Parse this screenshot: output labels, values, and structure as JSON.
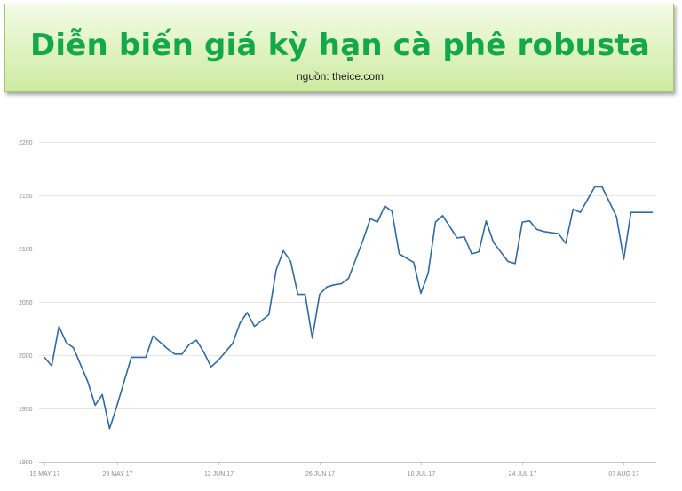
{
  "header": {
    "title": "Diễn biến giá kỳ hạn cà phê robusta",
    "source": "nguồn: theice.com",
    "title_color": "#13a84a"
  },
  "chart_data": {
    "type": "line",
    "title": "Diễn biến giá kỳ hạn cà phê robusta",
    "xlabel": "",
    "ylabel": "",
    "ylim": [
      1900,
      2200
    ],
    "yticks": [
      1900,
      1950,
      2000,
      2050,
      2100,
      2150,
      2200
    ],
    "ytick_labels": [
      "1900",
      "1950",
      "2000",
      "2050",
      "2100",
      "2150",
      "2200"
    ],
    "xlim": [
      "2017-05-19",
      "2017-08-11"
    ],
    "xtick_labels": [
      "19 MAY 17",
      "29 MAY 17",
      "12 JUN 17",
      "26 JUN 17",
      "10 JUL 17",
      "24 JUL 17",
      "07 AUG 17"
    ],
    "xtick_dates": [
      "2017-05-19",
      "2017-05-29",
      "2017-06-12",
      "2017-06-26",
      "2017-07-10",
      "2017-07-24",
      "2017-08-07"
    ],
    "grid": true,
    "line_color": "#2f6aa8",
    "series": [
      {
        "x": [
          "2017-05-19",
          "2017-05-20",
          "2017-05-21",
          "2017-05-22",
          "2017-05-23",
          "2017-05-25",
          "2017-05-26",
          "2017-05-27",
          "2017-05-28",
          "2017-05-29",
          "2017-05-31",
          "2017-06-01",
          "2017-06-02",
          "2017-06-03",
          "2017-06-05",
          "2017-06-06",
          "2017-06-07",
          "2017-06-08",
          "2017-06-09",
          "2017-06-10",
          "2017-06-11",
          "2017-06-12",
          "2017-06-14",
          "2017-06-15",
          "2017-06-16",
          "2017-06-17",
          "2017-06-19",
          "2017-06-20",
          "2017-06-21",
          "2017-06-22",
          "2017-06-23",
          "2017-06-24",
          "2017-06-25",
          "2017-06-26",
          "2017-06-27",
          "2017-06-28",
          "2017-06-29",
          "2017-06-30",
          "2017-07-02",
          "2017-07-03",
          "2017-07-04",
          "2017-07-05",
          "2017-07-06",
          "2017-07-07",
          "2017-07-09",
          "2017-07-10",
          "2017-07-11",
          "2017-07-12",
          "2017-07-13",
          "2017-07-15",
          "2017-07-16",
          "2017-07-17",
          "2017-07-18",
          "2017-07-19",
          "2017-07-20",
          "2017-07-22",
          "2017-07-23",
          "2017-07-24",
          "2017-07-25",
          "2017-07-26",
          "2017-07-27",
          "2017-07-29",
          "2017-07-30",
          "2017-07-31",
          "2017-08-01",
          "2017-08-02",
          "2017-08-03",
          "2017-08-04",
          "2017-08-06",
          "2017-08-07",
          "2017-08-08",
          "2017-08-09",
          "2017-08-10",
          "2017-08-11"
        ],
        "values": [
          1998,
          1990,
          2027,
          2012,
          2007,
          1975,
          1953,
          1963,
          1931,
          1952,
          1998,
          1998,
          1998,
          2018,
          2006,
          2001,
          2001,
          2010,
          2014,
          2003,
          1989,
          1995,
          2011,
          2030,
          2040,
          2027,
          2038,
          2080,
          2098,
          2088,
          2057,
          2057,
          2016,
          2057,
          2064,
          2066,
          2067,
          2072,
          2108,
          2128,
          2125,
          2140,
          2135,
          2095,
          2087,
          2058,
          2077,
          2125,
          2131,
          2110,
          2111,
          2095,
          2097,
          2126,
          2106,
          2088,
          2086,
          2125,
          2126,
          2118,
          2116,
          2114,
          2105,
          2137,
          2134,
          2146,
          2158,
          2158,
          2130,
          2090,
          2134,
          2134,
          2134,
          2134
        ]
      }
    ]
  }
}
